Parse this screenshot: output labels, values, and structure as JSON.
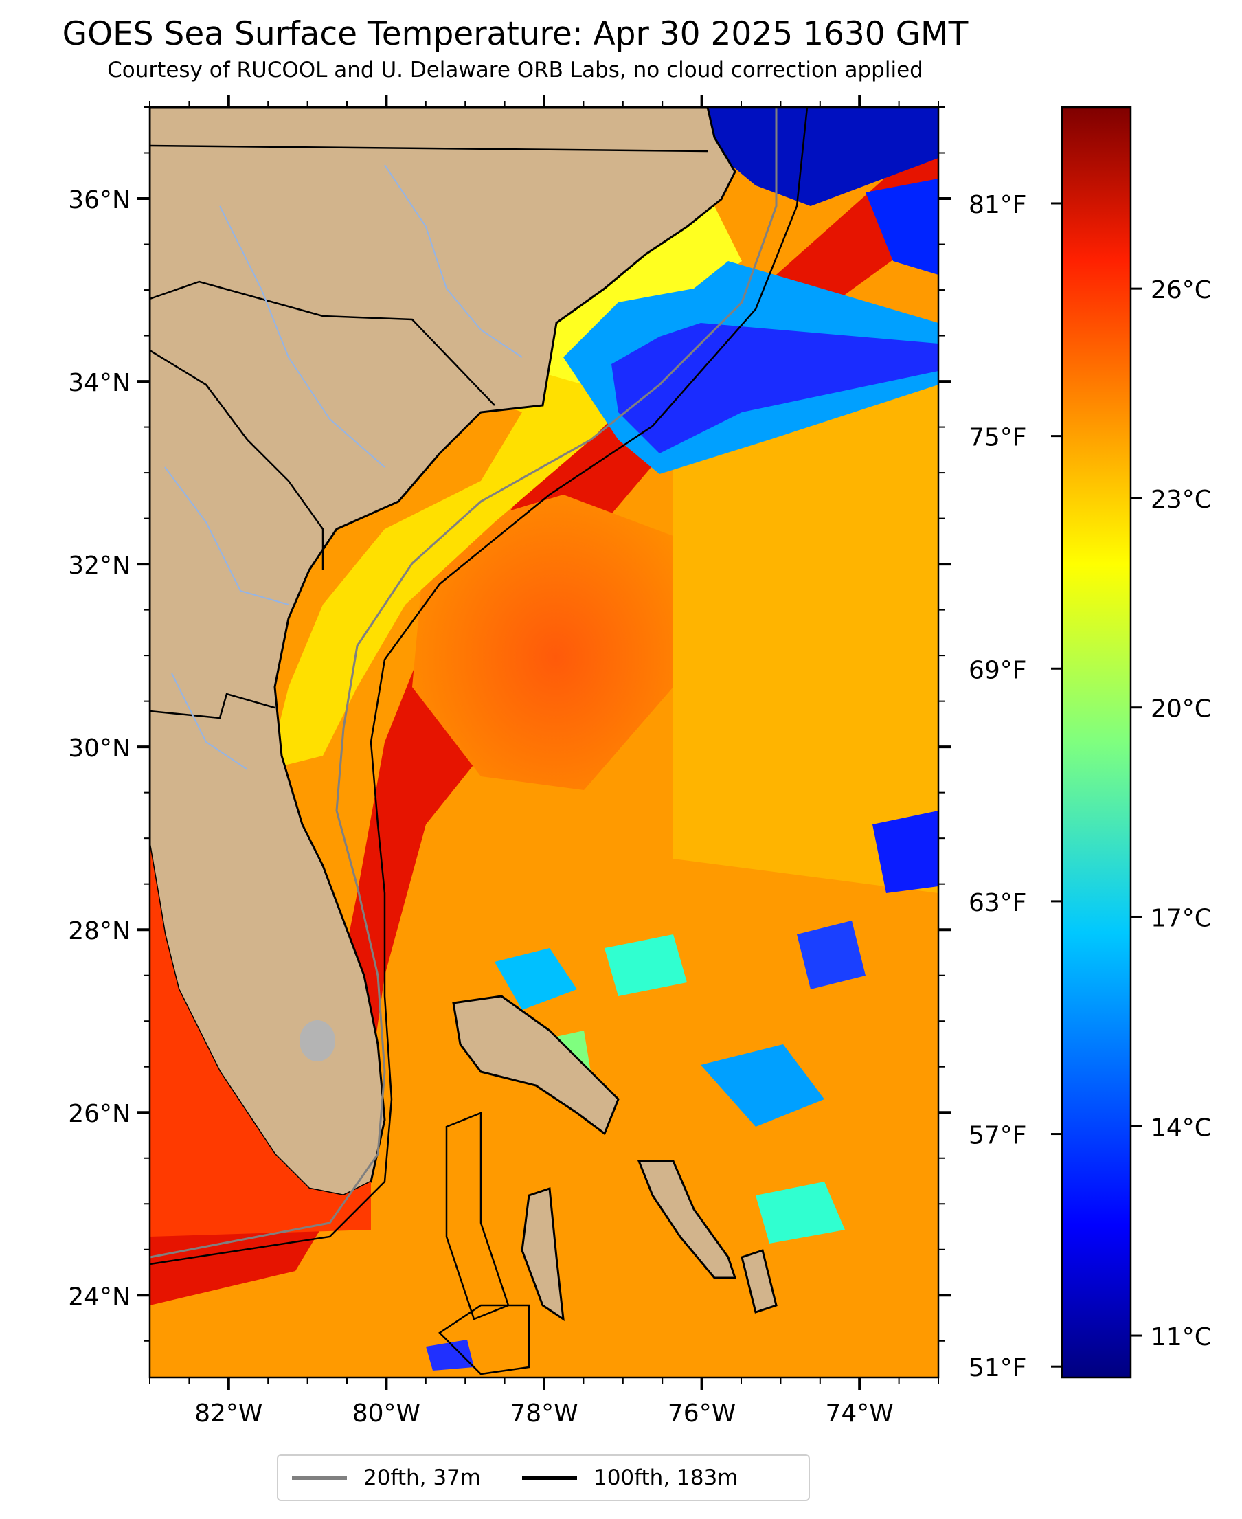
{
  "header": {
    "title": "GOES Sea Surface Temperature: Apr 30 2025 1630 GMT",
    "subtitle": "Courtesy of RUCOOL and U. Delaware ORB Labs, no cloud correction applied"
  },
  "map": {
    "lat_labels": [
      "36°N",
      "34°N",
      "32°N",
      "30°N",
      "28°N",
      "26°N",
      "24°N"
    ],
    "lon_labels": [
      "82°W",
      "80°W",
      "78°W",
      "76°W",
      "74°W"
    ],
    "fahrenheit_labels": [
      "81°F",
      "75°F",
      "69°F",
      "63°F",
      "57°F",
      "51°F"
    ],
    "extent": {
      "lon": [
        -83,
        -73
      ],
      "lat": [
        23.1,
        37
      ]
    },
    "land_color": "#d2b48c"
  },
  "colorbar": {
    "labels": [
      "26°C",
      "23°C",
      "20°C",
      "17°C",
      "14°C",
      "11°C"
    ],
    "colormap": "jet",
    "range_c": [
      10.4,
      28.6
    ]
  },
  "legend": {
    "items": [
      {
        "label": "20fth, 37m",
        "color": "#808080"
      },
      {
        "label": "100fth, 183m",
        "color": "#000000"
      }
    ]
  }
}
